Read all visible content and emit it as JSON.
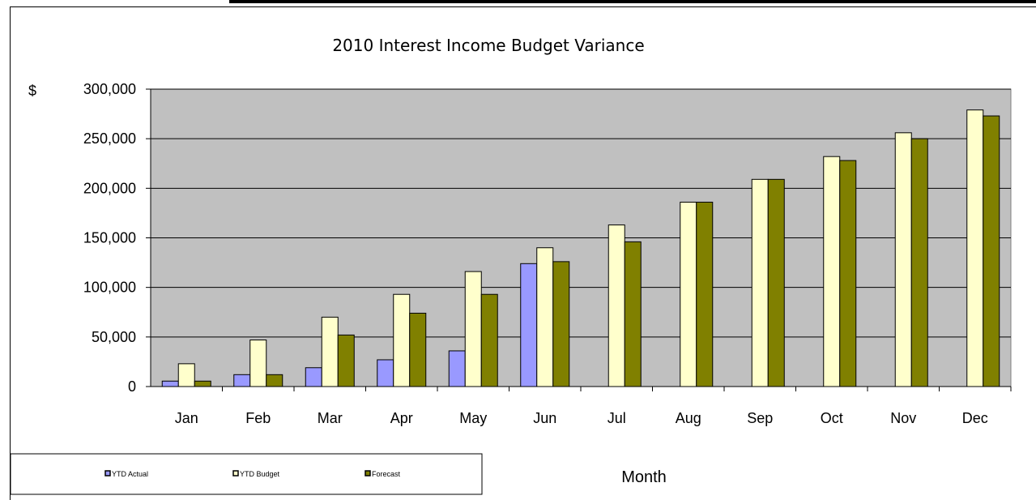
{
  "chart_data": {
    "type": "bar",
    "title": "2010 Interest Income Budget Variance",
    "xlabel": "Month",
    "ylabel": "$",
    "categories": [
      "Jan",
      "Feb",
      "Mar",
      "Apr",
      "May",
      "Jun",
      "Jul",
      "Aug",
      "Sep",
      "Oct",
      "Nov",
      "Dec"
    ],
    "ylim": [
      0,
      300000
    ],
    "yticks": [
      "0",
      "50,000",
      "100,000",
      "150,000",
      "200,000",
      "250,000",
      "300,000"
    ],
    "ytick_values": [
      0,
      50000,
      100000,
      150000,
      200000,
      250000,
      300000
    ],
    "grid": true,
    "legend_position": "bottom-left",
    "series": [
      {
        "name": "YTD Actual",
        "color": "#9999ff",
        "values": [
          5500,
          12000,
          19000,
          27000,
          36000,
          124000,
          null,
          null,
          null,
          null,
          null,
          null
        ]
      },
      {
        "name": "YTD Budget",
        "color": "#ffffcc",
        "values": [
          23000,
          47000,
          70000,
          93000,
          116000,
          140000,
          163000,
          186000,
          209000,
          232000,
          256000,
          279000
        ]
      },
      {
        "name": "Forecast",
        "color": "#808000",
        "values": [
          5500,
          12000,
          52000,
          74000,
          93000,
          126000,
          146000,
          186000,
          209000,
          228000,
          250000,
          273000
        ]
      }
    ],
    "plot_background": "#c0c0c0"
  }
}
